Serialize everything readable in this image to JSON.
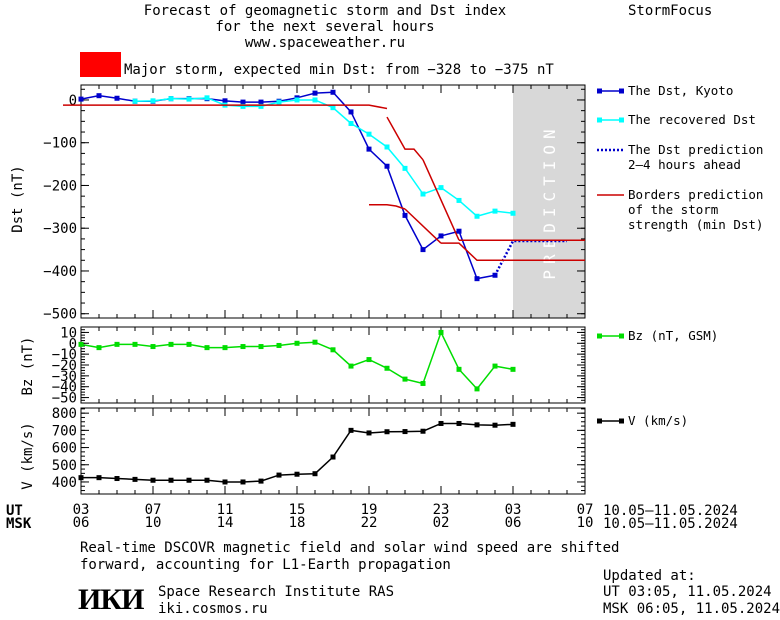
{
  "header": {
    "title_line1": "Forecast of geomagnetic storm and Dst index",
    "title_line2": "for the next several hours",
    "website": "www.spaceweather.ru",
    "brand": "StormFocus"
  },
  "alert": {
    "color": "#ff0000",
    "text": "Major storm, expected min Dst: from −328 to −375 nT"
  },
  "legend": {
    "dst_kyoto": "The Dst, Kyoto",
    "dst_recovered": "The recovered Dst",
    "dst_pred_1": "The Dst prediction",
    "dst_pred_2": "2–4 hours ahead",
    "borders_1": "Borders prediction",
    "borders_2": "of the storm",
    "borders_3": "strength (min Dst)",
    "bz": "Bz (nT, GSM)",
    "v": "V (km/s)"
  },
  "axes_text": {
    "ut_label": "UT",
    "msk_label": "MSK",
    "ut_ticks": [
      "03",
      "07",
      "11",
      "15",
      "19",
      "23",
      "03",
      "07"
    ],
    "msk_ticks": [
      "06",
      "10",
      "14",
      "18",
      "22",
      "02",
      "06",
      "10"
    ],
    "date_range_ut": "10.05–11.05.2024",
    "date_range_msk": "10.05–11.05.2024",
    "prediction_label": "PREDICTION"
  },
  "footer": {
    "note_line1": "Real-time DSCOVR magnetic field and solar wind speed are shifted",
    "note_line2": "forward, accounting for L1-Earth propagation",
    "logo": "ИКИ",
    "org_name": "Space Research Institute RAS",
    "org_site": "iki.cosmos.ru",
    "updated_label": "Updated at:",
    "updated_ut": "UT   03:05, 11.05.2024",
    "updated_msk": "MSK 06:05, 11.05.2024"
  },
  "chart_data": [
    {
      "type": "line",
      "ylabel": "Dst (nT)",
      "ylim": [
        -510,
        35
      ],
      "yticks": [
        0,
        -100,
        -200,
        -300,
        -400,
        -500
      ],
      "xlim": [
        0,
        28
      ],
      "prediction_start_hour": 24,
      "series": [
        {
          "name": "The Dst, Kyoto",
          "color": "#0000cc",
          "marker": "square",
          "x": [
            0,
            1,
            2,
            3,
            4,
            5,
            6,
            7,
            8,
            9,
            10,
            11,
            12,
            13,
            14,
            15,
            16,
            17,
            18,
            19,
            20,
            21,
            22,
            23
          ],
          "y": [
            2,
            10,
            4,
            -3,
            -3,
            3,
            3,
            3,
            -2,
            -5,
            -5,
            -3,
            5,
            16,
            18,
            -28,
            -115,
            -155,
            -270,
            -350,
            -318,
            -307,
            -418,
            -410
          ]
        },
        {
          "name": "The recovered Dst",
          "color": "#00ffff",
          "marker": "square",
          "x": [
            3,
            4,
            5,
            6,
            7,
            8,
            9,
            10,
            11,
            12,
            13,
            14,
            15,
            16,
            17,
            18,
            19,
            20,
            21,
            22,
            23,
            24
          ],
          "y": [
            -3,
            -2,
            3,
            2,
            5,
            -12,
            -15,
            -15,
            -5,
            0,
            0,
            -18,
            -55,
            -80,
            -110,
            -160,
            -220,
            -205,
            -235,
            -272,
            -260,
            -265
          ]
        },
        {
          "name": "The Dst prediction 2–4 hours ahead",
          "color": "#0000cc",
          "style": "dotted",
          "x": [
            23,
            24,
            25,
            26,
            27
          ],
          "y": [
            -410,
            -330,
            -330,
            -330,
            -330
          ]
        },
        {
          "name": "Borders prediction of the storm strength (min Dst)",
          "color": "#cc0000",
          "segments": [
            {
              "x": [
                -1,
                15,
                16,
                17
              ],
              "y": [
                -12,
                -12,
                -12,
                -20
              ]
            },
            {
              "x": [
                17,
                18,
                18.5,
                19
              ],
              "y": [
                -40,
                -115,
                -115,
                -140
              ]
            },
            {
              "x": [
                19,
                21
              ],
              "y": [
                -140,
                -328
              ]
            },
            {
              "x": [
                21,
                28
              ],
              "y": [
                -328,
                -328
              ]
            },
            {
              "x": [
                16,
                17,
                17.5,
                18
              ],
              "y": [
                -245,
                -245,
                -248,
                -255
              ]
            },
            {
              "x": [
                18,
                20
              ],
              "y": [
                -255,
                -335
              ]
            },
            {
              "x": [
                20,
                21,
                22,
                28
              ],
              "y": [
                -335,
                -335,
                -375,
                -375
              ]
            }
          ]
        }
      ]
    },
    {
      "type": "line",
      "ylabel": "Bz (nT)",
      "ylim": [
        -55,
        15
      ],
      "yticks": [
        10,
        0,
        -10,
        -20,
        -30,
        -40,
        -50
      ],
      "xlim": [
        0,
        28
      ],
      "series": [
        {
          "name": "Bz (nT, GSM)",
          "color": "#00dd00",
          "marker": "square",
          "x": [
            0,
            1,
            2,
            3,
            4,
            5,
            6,
            7,
            8,
            9,
            10,
            11,
            12,
            13,
            14,
            15,
            16,
            17,
            18,
            19,
            20,
            21,
            22,
            23,
            24
          ],
          "y": [
            -1,
            -4,
            -1,
            -1,
            -3,
            -1,
            -1,
            -4,
            -4,
            -3,
            -3,
            -2,
            0,
            1,
            -6,
            -21,
            -15,
            -23,
            -33,
            -37,
            10,
            -24,
            -42,
            -21,
            -24
          ]
        }
      ]
    },
    {
      "type": "line",
      "ylabel": "V (km/s)",
      "ylim": [
        330,
        830
      ],
      "yticks": [
        800,
        700,
        600,
        500,
        400
      ],
      "xlim": [
        0,
        28
      ],
      "series": [
        {
          "name": "V (km/s)",
          "color": "#000000",
          "marker": "square",
          "x": [
            0,
            1,
            2,
            3,
            4,
            5,
            6,
            7,
            8,
            9,
            10,
            11,
            12,
            13,
            14,
            15,
            16,
            17,
            18,
            19,
            20,
            21,
            22,
            23,
            24
          ],
          "y": [
            425,
            425,
            420,
            415,
            410,
            410,
            410,
            410,
            400,
            400,
            405,
            440,
            445,
            448,
            545,
            700,
            685,
            692,
            693,
            695,
            740,
            740,
            732,
            730,
            735
          ]
        }
      ]
    }
  ]
}
